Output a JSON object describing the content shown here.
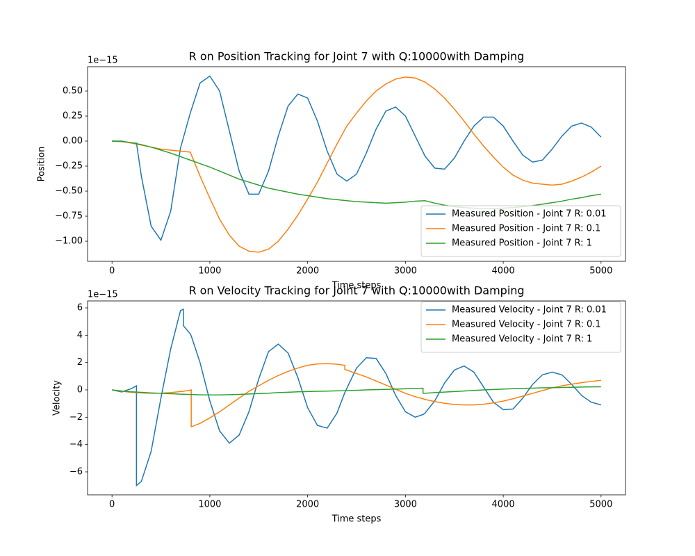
{
  "chart_data": [
    {
      "type": "line",
      "title": "R on Position Tracking for Joint 7 with Q:10000with Damping",
      "x_label": "Time steps",
      "y_label": "Position",
      "y_offset_label": "1e−15",
      "legend": "lower right",
      "x": [
        0,
        100,
        200,
        250,
        300,
        400,
        500,
        600,
        700,
        800,
        900,
        1000,
        1100,
        1200,
        1300,
        1400,
        1500,
        1600,
        1700,
        1800,
        1900,
        2000,
        2100,
        2200,
        2300,
        2400,
        2500,
        2600,
        2700,
        2800,
        2900,
        3000,
        3100,
        3200,
        3300,
        3400,
        3500,
        3600,
        3700,
        3800,
        3900,
        4000,
        4100,
        4200,
        4300,
        4400,
        4500,
        4600,
        4700,
        4800,
        4900,
        5000
      ],
      "series": [
        {
          "name": "Measured Position - Joint 7 R: 0.01",
          "color": "#1f77b4",
          "values": [
            0,
            0,
            -0.02,
            -0.02,
            -0.35,
            -0.85,
            -0.99,
            -0.7,
            -0.07,
            0.28,
            0.58,
            0.65,
            0.5,
            0.1,
            -0.3,
            -0.53,
            -0.53,
            -0.3,
            0.05,
            0.35,
            0.47,
            0.43,
            0.2,
            -0.1,
            -0.33,
            -0.4,
            -0.33,
            -0.12,
            0.12,
            0.3,
            0.34,
            0.25,
            0.05,
            -0.15,
            -0.27,
            -0.28,
            -0.17,
            0,
            0.15,
            0.24,
            0.24,
            0.15,
            0,
            -0.14,
            -0.21,
            -0.19,
            -0.08,
            0.05,
            0.15,
            0.18,
            0.14,
            0.04
          ]
        },
        {
          "name": "Measured Position - Joint 7 R: 0.1",
          "color": "#ff7f0e",
          "values": [
            0,
            -0.005,
            -0.02,
            -0.03,
            -0.04,
            -0.06,
            -0.08,
            -0.09,
            -0.1,
            -0.11,
            -0.35,
            -0.57,
            -0.78,
            -0.94,
            -1.05,
            -1.1,
            -1.11,
            -1.08,
            -1,
            -0.88,
            -0.74,
            -0.58,
            -0.41,
            -0.22,
            -0.03,
            0.15,
            0.28,
            0.4,
            0.5,
            0.57,
            0.62,
            0.64,
            0.63,
            0.59,
            0.52,
            0.43,
            0.32,
            0.2,
            0.07,
            -0.05,
            -0.16,
            -0.26,
            -0.34,
            -0.39,
            -0.42,
            -0.43,
            -0.44,
            -0.43,
            -0.4,
            -0.36,
            -0.31,
            -0.25
          ]
        },
        {
          "name": "Measured Position - Joint 7 R: 1",
          "color": "#2ca02c",
          "values": [
            0,
            -0.003,
            -0.015,
            -0.025,
            -0.035,
            -0.06,
            -0.09,
            -0.12,
            -0.155,
            -0.19,
            -0.225,
            -0.26,
            -0.3,
            -0.34,
            -0.38,
            -0.41,
            -0.44,
            -0.47,
            -0.49,
            -0.51,
            -0.53,
            -0.545,
            -0.56,
            -0.575,
            -0.585,
            -0.595,
            -0.605,
            -0.61,
            -0.615,
            -0.62,
            -0.615,
            -0.61,
            -0.6,
            -0.595,
            -0.62,
            -0.64,
            -0.655,
            -0.665,
            -0.67,
            -0.675,
            -0.675,
            -0.67,
            -0.665,
            -0.655,
            -0.645,
            -0.63,
            -0.615,
            -0.6,
            -0.58,
            -0.565,
            -0.545,
            -0.53
          ]
        }
      ],
      "xlim": [
        -250,
        5250
      ],
      "xticks": [
        0,
        1000,
        2000,
        3000,
        4000,
        5000
      ],
      "ylim": [
        -1.201,
        0.743
      ],
      "yticks": [
        {
          "value": -1,
          "label": "−1.00"
        },
        {
          "value": -0.75,
          "label": "−0.75"
        },
        {
          "value": -0.5,
          "label": "−0.50"
        },
        {
          "value": -0.25,
          "label": "−0.25"
        },
        {
          "value": 0,
          "label": "0.00"
        },
        {
          "value": 0.25,
          "label": "0.25"
        },
        {
          "value": 0.5,
          "label": "0.50"
        }
      ]
    },
    {
      "type": "line",
      "title": "R on Velocity Tracking for Joint 7 with Q:10000with Damping",
      "x_label": "Time steps",
      "y_label": "Velocity",
      "y_offset_label": "1e−15",
      "legend": "upper right",
      "x": [
        0,
        100,
        200,
        250,
        250,
        300,
        400,
        500,
        600,
        700,
        730,
        730,
        800,
        810,
        810,
        900,
        1000,
        1100,
        1200,
        1300,
        1400,
        1500,
        1600,
        1700,
        1800,
        1900,
        2000,
        2100,
        2200,
        2300,
        2380,
        2380,
        2400,
        2500,
        2600,
        2700,
        2800,
        2900,
        3000,
        3100,
        3180,
        3180,
        3200,
        3300,
        3400,
        3500,
        3600,
        3700,
        3800,
        3900,
        4000,
        4100,
        4200,
        4300,
        4400,
        4500,
        4600,
        4700,
        4800,
        4900,
        5000
      ],
      "series": [
        {
          "name": "Measured Velocity - Joint 7 R: 0.01",
          "color": "#1f77b4",
          "values": [
            0,
            -0.15,
            0.1,
            0.3,
            -7,
            -6.7,
            -4.5,
            -0.6,
            3,
            5.8,
            5.9,
            4.7,
            4.1,
            3.95,
            3.95,
            2,
            -0.8,
            -3,
            -3.9,
            -3.3,
            -1.6,
            0.8,
            2.8,
            3.35,
            2.7,
            0.9,
            -1.3,
            -2.6,
            -2.8,
            -1.7,
            -0.2,
            -0.2,
            0.1,
            1.6,
            2.35,
            2.3,
            1.2,
            -0.4,
            -1.6,
            -2,
            -1.8,
            -1.8,
            -1.7,
            -0.8,
            0.5,
            1.45,
            1.75,
            1.3,
            0.2,
            -0.9,
            -1.45,
            -1.4,
            -0.6,
            0.4,
            1.1,
            1.3,
            1.1,
            0.4,
            -0.4,
            -0.9,
            -1.1
          ]
        },
        {
          "name": "Measured Velocity - Joint 7 R: 0.1",
          "color": "#ff7f0e",
          "values": [
            0,
            -0.1,
            -0.18,
            -0.2,
            -0.2,
            -0.22,
            -0.25,
            -0.24,
            -0.2,
            -0.12,
            -0.1,
            -0.1,
            -0.02,
            0,
            -2.7,
            -2.45,
            -2.05,
            -1.6,
            -1.1,
            -0.6,
            -0.1,
            0.3,
            0.7,
            1.05,
            1.35,
            1.6,
            1.8,
            1.9,
            1.92,
            1.88,
            1.8,
            1.5,
            1.45,
            1.2,
            0.95,
            0.65,
            0.35,
            0.05,
            -0.25,
            -0.5,
            -0.65,
            -0.65,
            -0.7,
            -0.85,
            -0.98,
            -1.07,
            -1.1,
            -1.1,
            -1.05,
            -0.95,
            -0.82,
            -0.65,
            -0.45,
            -0.25,
            -0.05,
            0.15,
            0.3,
            0.42,
            0.53,
            0.62,
            0.7
          ]
        },
        {
          "name": "Measured Velocity - Joint 7 R: 1",
          "color": "#2ca02c",
          "values": [
            0,
            -0.08,
            -0.14,
            -0.16,
            -0.16,
            -0.18,
            -0.22,
            -0.25,
            -0.28,
            -0.31,
            -0.32,
            -0.32,
            -0.34,
            -0.34,
            -0.34,
            -0.36,
            -0.37,
            -0.37,
            -0.35,
            -0.33,
            -0.3,
            -0.27,
            -0.24,
            -0.2,
            -0.17,
            -0.14,
            -0.12,
            -0.1,
            -0.09,
            -0.07,
            -0.06,
            -0.06,
            -0.05,
            -0.03,
            0,
            0.02,
            0.04,
            0.06,
            0.08,
            0.1,
            0.12,
            -0.25,
            -0.25,
            -0.2,
            -0.16,
            -0.12,
            -0.08,
            -0.04,
            0,
            0.03,
            0.06,
            0.09,
            0.11,
            0.13,
            0.15,
            0.16,
            0.18,
            0.19,
            0.21,
            0.22,
            0.23
          ]
        }
      ],
      "xlim": [
        -250,
        5250
      ],
      "xticks": [
        0,
        1000,
        2000,
        3000,
        4000,
        5000
      ],
      "ylim": [
        -7.68,
        6.51
      ],
      "yticks": [
        {
          "value": -6,
          "label": "−6"
        },
        {
          "value": -4,
          "label": "−4"
        },
        {
          "value": -2,
          "label": "−2"
        },
        0,
        2,
        4,
        6
      ]
    }
  ]
}
